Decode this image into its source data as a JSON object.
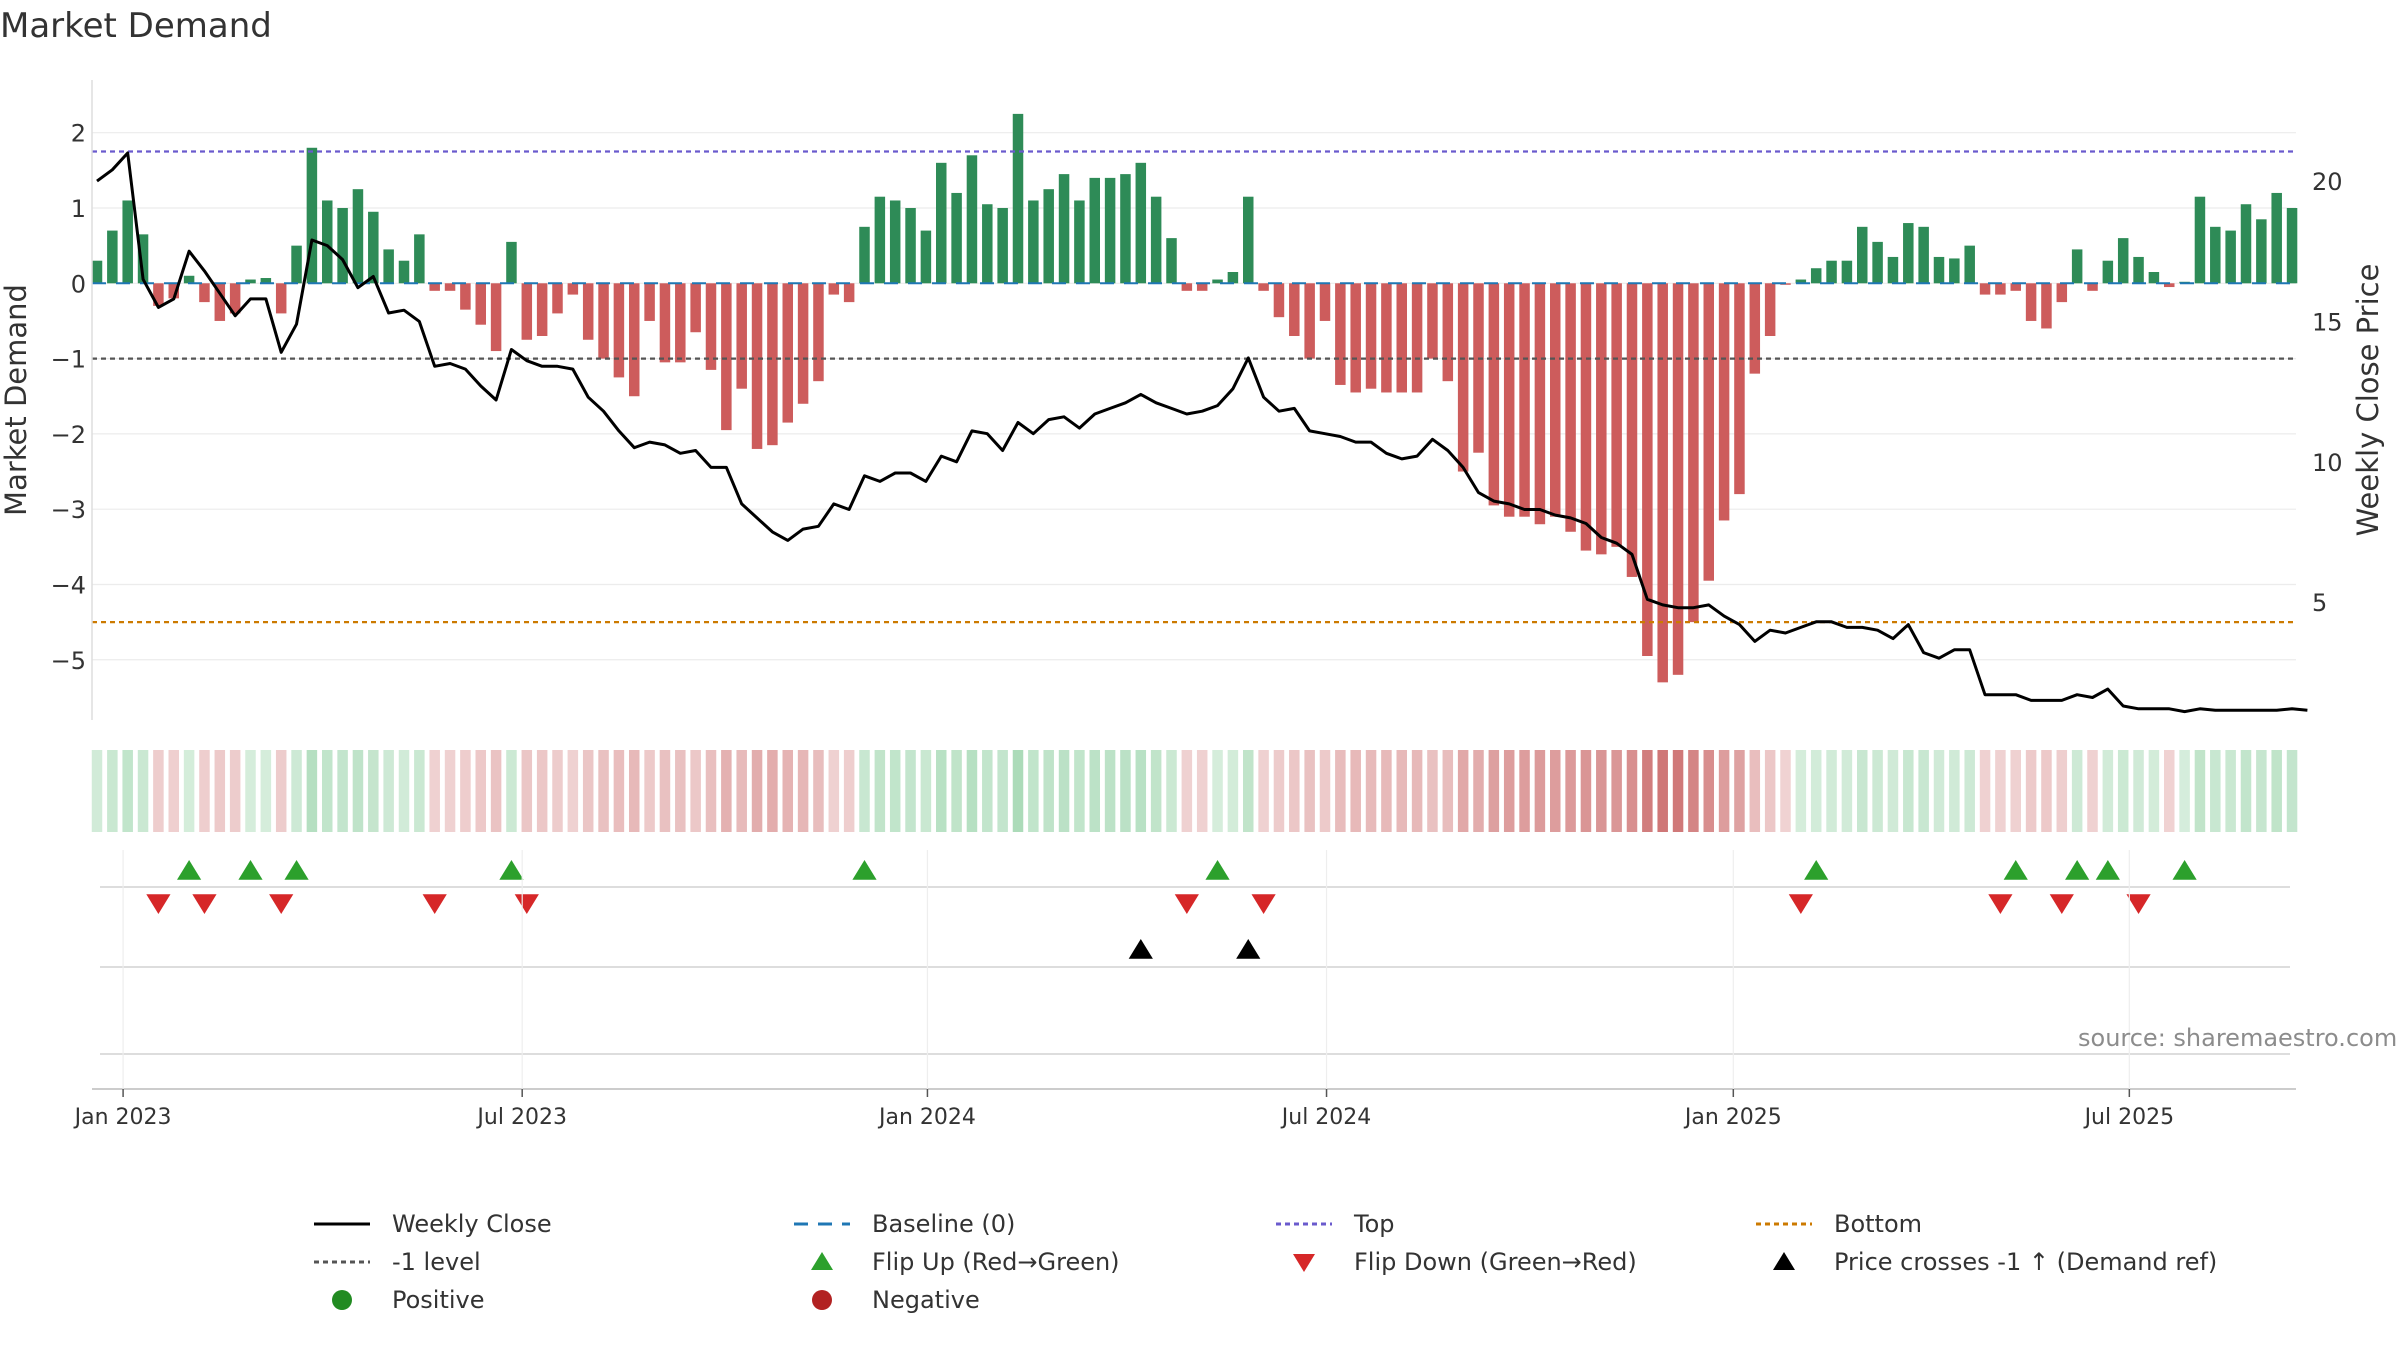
{
  "title": "Market Demand",
  "source": "source: sharemaestro.com",
  "chart_data": {
    "type": "bar",
    "title": "Market Demand",
    "ylabel": "Market Demand",
    "y2label": "Weekly Close Price",
    "ylim": [
      -5.8,
      2.7
    ],
    "y2lim": [
      0.8,
      23.6
    ],
    "yticks": [
      2,
      1,
      0,
      -1,
      -2,
      -3,
      -4,
      -5
    ],
    "ytick_labels": [
      "2",
      "1",
      "0",
      "−1",
      "−2",
      "−3",
      "−4",
      "−5"
    ],
    "y2ticks": [
      20,
      15,
      10,
      5
    ],
    "y2tick_labels": [
      "20",
      "15",
      "10",
      "5"
    ],
    "x_tick_labels": [
      "Jan 2023",
      "Jul 2023",
      "Jan 2024",
      "Jul 2024",
      "Jan 2025",
      "Jul 2025"
    ],
    "x_tick_weeks": [
      1.7,
      27.7,
      54.1,
      80.1,
      106.6,
      132.4
    ],
    "top_level": 1.75,
    "minus_one_level": -1.0,
    "bottom_level": -4.5,
    "demand": [
      0.3,
      0.7,
      1.1,
      0.65,
      -0.3,
      -0.2,
      0.1,
      -0.25,
      -0.5,
      -0.4,
      0.05,
      0.07,
      -0.4,
      0.5,
      1.8,
      1.1,
      1.0,
      1.25,
      0.95,
      0.45,
      0.3,
      0.65,
      -0.1,
      -0.1,
      -0.35,
      -0.55,
      -0.9,
      0.55,
      -0.75,
      -0.7,
      -0.4,
      -0.15,
      -0.75,
      -1.0,
      -1.25,
      -1.5,
      -0.5,
      -1.05,
      -1.05,
      -0.65,
      -1.15,
      -1.95,
      -1.4,
      -2.2,
      -2.15,
      -1.85,
      -1.6,
      -1.3,
      -0.15,
      -0.25,
      0.75,
      1.15,
      1.1,
      1.0,
      0.7,
      1.6,
      1.2,
      1.7,
      1.05,
      1.0,
      2.25,
      1.1,
      1.25,
      1.45,
      1.1,
      1.4,
      1.4,
      1.45,
      1.6,
      1.15,
      0.6,
      -0.1,
      -0.1,
      0.05,
      0.15,
      1.15,
      -0.1,
      -0.45,
      -0.7,
      -1.0,
      -0.5,
      -1.35,
      -1.45,
      -1.4,
      -1.45,
      -1.45,
      -1.45,
      -1.0,
      -1.3,
      -2.5,
      -2.25,
      -2.95,
      -3.1,
      -3.1,
      -3.2,
      -3.1,
      -3.3,
      -3.55,
      -3.6,
      -3.5,
      -3.9,
      -4.95,
      -5.3,
      -5.2,
      -4.5,
      -3.95,
      -3.15,
      -2.8,
      -1.2,
      -0.7,
      -0.02,
      0.05,
      0.2,
      0.3,
      0.3,
      0.75,
      0.55,
      0.35,
      0.8,
      0.75,
      0.35,
      0.33,
      0.5,
      -0.15,
      -0.15,
      -0.1,
      -0.5,
      -0.6,
      -0.25,
      0.45,
      -0.1,
      0.3,
      0.6,
      0.35,
      0.15,
      -0.05,
      0.02,
      1.15,
      0.75,
      0.7,
      1.05,
      0.85,
      1.2,
      1.0
    ],
    "weekly_close": [
      20.0,
      20.4,
      21.0,
      16.5,
      15.5,
      15.8,
      17.5,
      16.8,
      16.0,
      15.2,
      15.8,
      15.8,
      13.9,
      14.9,
      17.9,
      17.7,
      17.2,
      16.2,
      16.6,
      15.3,
      15.4,
      15.0,
      13.4,
      13.5,
      13.3,
      12.7,
      12.2,
      14.0,
      13.6,
      13.4,
      13.4,
      13.3,
      12.3,
      11.8,
      11.1,
      10.5,
      10.7,
      10.6,
      10.3,
      10.4,
      9.8,
      9.8,
      8.5,
      8.0,
      7.5,
      7.2,
      7.6,
      7.7,
      8.5,
      8.3,
      9.5,
      9.3,
      9.6,
      9.6,
      9.3,
      10.2,
      10.0,
      11.1,
      11.0,
      10.4,
      11.4,
      11.0,
      11.5,
      11.6,
      11.2,
      11.7,
      11.9,
      12.1,
      12.4,
      12.1,
      11.9,
      11.7,
      11.8,
      12.0,
      12.6,
      13.7,
      12.3,
      11.8,
      11.9,
      11.1,
      11.0,
      10.9,
      10.7,
      10.7,
      10.3,
      10.1,
      10.2,
      10.8,
      10.4,
      9.8,
      8.9,
      8.6,
      8.5,
      8.3,
      8.3,
      8.1,
      8.0,
      7.8,
      7.3,
      7.1,
      6.7,
      5.1,
      4.9,
      4.8,
      4.8,
      4.9,
      4.5,
      4.2,
      3.6,
      4.0,
      3.9,
      4.1,
      4.3,
      4.3,
      4.1,
      4.1,
      4.0,
      3.7,
      4.2,
      3.2,
      3.0,
      3.3,
      3.3,
      1.7,
      1.7,
      1.7,
      1.5,
      1.5,
      1.5,
      1.7,
      1.6,
      1.9,
      1.3,
      1.2,
      1.2,
      1.2,
      1.1,
      1.2,
      1.15,
      1.15,
      1.15,
      1.15,
      1.15,
      1.2,
      1.15
    ],
    "flip_up_weeks": [
      6,
      10,
      13,
      27,
      50,
      73,
      112,
      125,
      129,
      131,
      136
    ],
    "flip_down_weeks": [
      4,
      7,
      12,
      22,
      28,
      71,
      76,
      111,
      124,
      128,
      133
    ],
    "price_cross_weeks": [
      68,
      75
    ],
    "legend": [
      {
        "label": "Weekly Close"
      },
      {
        "label": "Baseline (0)"
      },
      {
        "label": "Top"
      },
      {
        "label": "Bottom"
      },
      {
        "label": "-1 level"
      },
      {
        "label": "Flip Up (Red→Green)"
      },
      {
        "label": "Flip Down (Green→Red)"
      },
      {
        "label": "Price crosses -1 ↑ (Demand ref)"
      },
      {
        "label": "Positive"
      },
      {
        "label": "Negative"
      }
    ],
    "colors": {
      "positive": "#2e8b57",
      "negative": "#cd5c5c",
      "close": "#000000",
      "top": "#6a5acd",
      "bottom": "#cc7a00",
      "minus_one": "#555555",
      "baseline": "#1f77b4",
      "flip_up": "#2ca02c",
      "flip_down": "#d62728",
      "legend_positive": "#228b22",
      "legend_negative": "#b22222"
    }
  }
}
